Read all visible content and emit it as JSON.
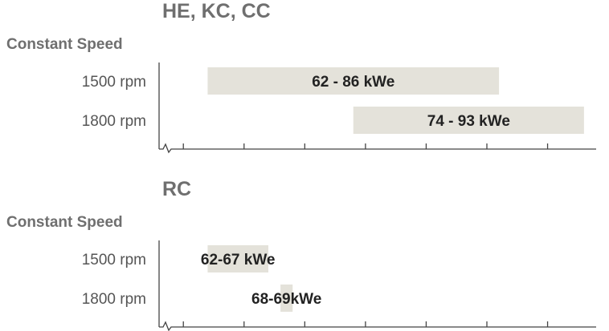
{
  "colors": {
    "bar": "#e4e2da",
    "axis": "#444444",
    "title": "#6f6f6f",
    "row_label": "#555555",
    "bar_text": "#222222"
  },
  "chart_data": [
    {
      "type": "bar",
      "title": "HE, KC, CC",
      "subtitle": "Constant Speed",
      "categories": [
        "1500 rpm",
        "1800 rpm"
      ],
      "ranges": [
        {
          "category": "1500 rpm",
          "label": "62 - 86 kWe",
          "start": 62,
          "end": 86
        },
        {
          "category": "1800 rpm",
          "label": "74 - 93 kWe",
          "start": 74,
          "end": 93
        }
      ],
      "xlim": [
        58,
        94
      ],
      "tick_values": [
        60,
        65,
        70,
        75,
        80,
        85,
        90
      ],
      "tick_labels": false,
      "axis_break": true,
      "grid": false
    },
    {
      "type": "bar",
      "title": "RC",
      "subtitle": "Constant Speed",
      "categories": [
        "1500 rpm",
        "1800 rpm"
      ],
      "ranges": [
        {
          "category": "1500 rpm",
          "label": "62-67 kWe",
          "start": 62,
          "end": 67
        },
        {
          "category": "1800 rpm",
          "label": "68-69kWe",
          "start": 68,
          "end": 69
        }
      ],
      "xlim": [
        58,
        94
      ],
      "tick_values": [
        60,
        65,
        70,
        75,
        80,
        85,
        90
      ],
      "tick_labels": false,
      "axis_break": true,
      "grid": false
    }
  ]
}
